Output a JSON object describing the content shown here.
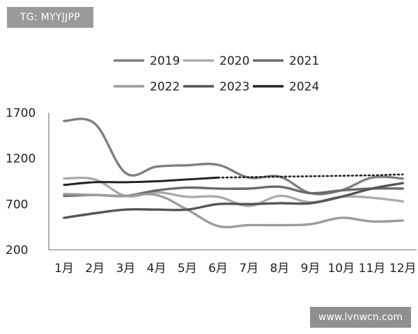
{
  "watermarks": {
    "top_left": "TG: MYYJJPP",
    "bottom_right": "www.lvnwcn.com"
  },
  "chart_data": {
    "type": "line",
    "title": "",
    "xlabel": "",
    "ylabel": "",
    "categories": [
      "1月",
      "2月",
      "3月",
      "4月",
      "5月",
      "6月",
      "7月",
      "8月",
      "9月",
      "10月",
      "11月",
      "12月"
    ],
    "ylim": [
      200,
      1700
    ],
    "yticks": [
      "1700",
      "1200",
      "700",
      "200"
    ],
    "grid": false,
    "legend_position": "top",
    "series": [
      {
        "name": "2019",
        "color": "#7f7f7f",
        "dashed": false,
        "values": [
          1610,
          1580,
          1040,
          1110,
          1125,
          1130,
          990,
          1000,
          820,
          850,
          990,
          980
        ]
      },
      {
        "name": "2020",
        "color": "#ababab",
        "dashed": false,
        "values": [
          980,
          970,
          790,
          830,
          780,
          780,
          680,
          790,
          720,
          780,
          770,
          730
        ]
      },
      {
        "name": "2021",
        "color": "#6a6a6a",
        "dashed": false,
        "values": [
          790,
          800,
          790,
          850,
          880,
          870,
          870,
          890,
          820,
          850,
          870,
          870
        ]
      },
      {
        "name": "2022",
        "color": "#9b9b9b",
        "dashed": false,
        "values": [
          810,
          800,
          790,
          800,
          640,
          460,
          470,
          470,
          480,
          550,
          510,
          520
        ]
      },
      {
        "name": "2023",
        "color": "#555555",
        "dashed": false,
        "values": [
          550,
          600,
          640,
          640,
          640,
          700,
          700,
          710,
          710,
          780,
          870,
          930
        ]
      },
      {
        "name": "2024",
        "color": "#222222",
        "dashed": false,
        "values": [
          910,
          940,
          940,
          950,
          970,
          990,
          null,
          null,
          null,
          null,
          null,
          null
        ]
      },
      {
        "name": "",
        "color": "#222222",
        "dashed": true,
        "values": [
          null,
          null,
          null,
          null,
          null,
          990,
          995,
          1000,
          1005,
          1010,
          1015,
          1025
        ]
      }
    ]
  }
}
